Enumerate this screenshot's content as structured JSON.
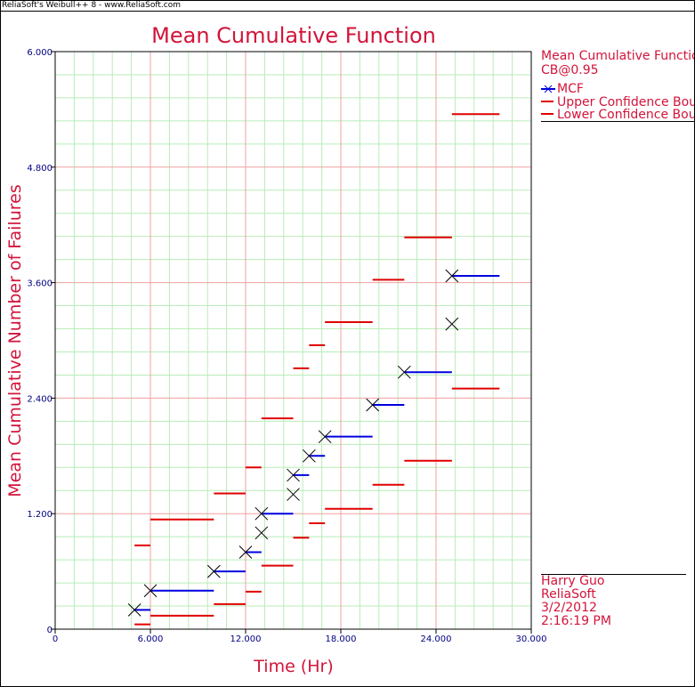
{
  "window": {
    "title": "ReliaSoft's Weibull++ 8 - www.ReliaSoft.com"
  },
  "colors": {
    "accent": "#d2143a",
    "mcf": "#0000e0",
    "bounds": "#e00000",
    "marker": "#000000",
    "axis": "#000080",
    "major_grid": "#f0a0a0",
    "minor_grid": "#b8ecb8"
  },
  "legend": {
    "title": "Mean Cumulative Function",
    "subtitle": "CB@0.95",
    "items": [
      {
        "label": "MCF",
        "color": "#0000e0",
        "icon": "x-marker-line"
      },
      {
        "label": "Upper Confidence Bounds",
        "color": "#e00000",
        "icon": "line"
      },
      {
        "label": "Lower Confidence Bounds",
        "color": "#e00000",
        "icon": "line"
      }
    ]
  },
  "info": {
    "lines": [
      "Harry Guo",
      "ReliaSoft",
      "3/2/2012",
      "2:16:19 PM"
    ]
  },
  "chart_data": {
    "type": "step",
    "title": "Mean Cumulative Function",
    "xlabel": "Time (Hr)",
    "ylabel": "Mean Cumulative Number of Failures",
    "xlim": [
      0,
      30000
    ],
    "ylim": [
      0,
      6
    ],
    "xticks": [
      0,
      6000,
      12000,
      18000,
      24000,
      30000
    ],
    "xtick_labels": [
      "0",
      "6.000",
      "12.000",
      "18.000",
      "24.000",
      "30.000"
    ],
    "yticks": [
      0,
      1.2,
      2.4,
      3.6,
      4.8,
      6
    ],
    "ytick_labels": [
      "0",
      "1.200",
      "2.400",
      "3.600",
      "4.800",
      "6.000"
    ],
    "minor_divisions": 5,
    "grid": true,
    "legend_position": "right",
    "series": [
      {
        "name": "MCF",
        "points": [
          {
            "x": 5000,
            "y": 0.2
          },
          {
            "x": 6000,
            "y": 0.4
          },
          {
            "x": 10000,
            "y": 0.6
          },
          {
            "x": 12000,
            "y": 0.8
          },
          {
            "x": 13000,
            "y": 1.0
          },
          {
            "x": 13000,
            "y": 1.2
          },
          {
            "x": 15000,
            "y": 1.4
          },
          {
            "x": 15000,
            "y": 1.6
          },
          {
            "x": 16000,
            "y": 1.8
          },
          {
            "x": 17000,
            "y": 2.0
          },
          {
            "x": 20000,
            "y": 2.33
          },
          {
            "x": 22000,
            "y": 2.67
          },
          {
            "x": 25000,
            "y": 3.17
          },
          {
            "x": 25000,
            "y": 3.67
          }
        ],
        "steps": [
          {
            "x0": 5000,
            "x1": 6000,
            "y": 0.2
          },
          {
            "x0": 6000,
            "x1": 10000,
            "y": 0.4
          },
          {
            "x0": 10000,
            "x1": 12000,
            "y": 0.6
          },
          {
            "x0": 12000,
            "x1": 13000,
            "y": 0.8
          },
          {
            "x0": 13000,
            "x1": 15000,
            "y": 1.2
          },
          {
            "x0": 15000,
            "x1": 16000,
            "y": 1.6
          },
          {
            "x0": 16000,
            "x1": 17000,
            "y": 1.8
          },
          {
            "x0": 17000,
            "x1": 20000,
            "y": 2.0
          },
          {
            "x0": 20000,
            "x1": 22000,
            "y": 2.33
          },
          {
            "x0": 22000,
            "x1": 25000,
            "y": 2.67
          },
          {
            "x0": 25000,
            "x1": 28000,
            "y": 3.67
          }
        ]
      },
      {
        "name": "Upper Confidence Bounds",
        "steps": [
          {
            "x0": 5000,
            "x1": 6000,
            "y": 0.87
          },
          {
            "x0": 6000,
            "x1": 10000,
            "y": 1.14
          },
          {
            "x0": 10000,
            "x1": 12000,
            "y": 1.41
          },
          {
            "x0": 12000,
            "x1": 13000,
            "y": 1.68
          },
          {
            "x0": 13000,
            "x1": 15000,
            "y": 2.19
          },
          {
            "x0": 15000,
            "x1": 16000,
            "y": 2.71
          },
          {
            "x0": 16000,
            "x1": 17000,
            "y": 2.95
          },
          {
            "x0": 17000,
            "x1": 20000,
            "y": 3.19
          },
          {
            "x0": 20000,
            "x1": 22000,
            "y": 3.63
          },
          {
            "x0": 22000,
            "x1": 25000,
            "y": 4.07
          },
          {
            "x0": 25000,
            "x1": 28000,
            "y": 5.35
          }
        ]
      },
      {
        "name": "Lower Confidence Bounds",
        "steps": [
          {
            "x0": 5000,
            "x1": 6000,
            "y": 0.05
          },
          {
            "x0": 6000,
            "x1": 10000,
            "y": 0.14
          },
          {
            "x0": 10000,
            "x1": 12000,
            "y": 0.26
          },
          {
            "x0": 12000,
            "x1": 13000,
            "y": 0.39
          },
          {
            "x0": 13000,
            "x1": 15000,
            "y": 0.66
          },
          {
            "x0": 15000,
            "x1": 16000,
            "y": 0.95
          },
          {
            "x0": 16000,
            "x1": 17000,
            "y": 1.1
          },
          {
            "x0": 17000,
            "x1": 20000,
            "y": 1.25
          },
          {
            "x0": 20000,
            "x1": 22000,
            "y": 1.5
          },
          {
            "x0": 22000,
            "x1": 25000,
            "y": 1.75
          },
          {
            "x0": 25000,
            "x1": 28000,
            "y": 2.5
          }
        ]
      }
    ]
  }
}
